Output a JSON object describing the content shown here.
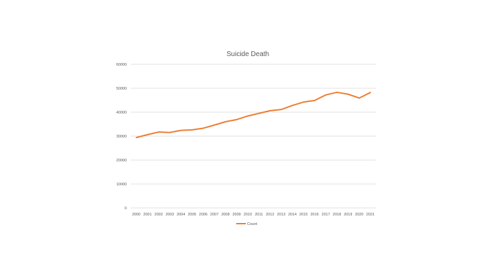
{
  "chart_data": {
    "type": "line",
    "title": "Suicide Death",
    "xlabel": "",
    "ylabel": "",
    "ylim": [
      0,
      60000
    ],
    "yticks": [
      "0",
      "10000",
      "20000",
      "30000",
      "40000",
      "50000",
      "60000"
    ],
    "grid": true,
    "legend_position": "bottom",
    "categories": [
      "2000",
      "2001",
      "2002",
      "2003",
      "2004",
      "2005",
      "2006",
      "2007",
      "2008",
      "2009",
      "2010",
      "2011",
      "2012",
      "2013",
      "2014",
      "2015",
      "2016",
      "2017",
      "2018",
      "2019",
      "2020",
      "2021"
    ],
    "series": [
      {
        "name": "Count",
        "color": "#ED7D31",
        "values": [
          29400,
          30600,
          31700,
          31500,
          32400,
          32600,
          33300,
          34600,
          36000,
          36900,
          38400,
          39500,
          40600,
          41100,
          42800,
          44200,
          44900,
          47200,
          48300,
          47500,
          45900,
          48200
        ]
      }
    ]
  }
}
